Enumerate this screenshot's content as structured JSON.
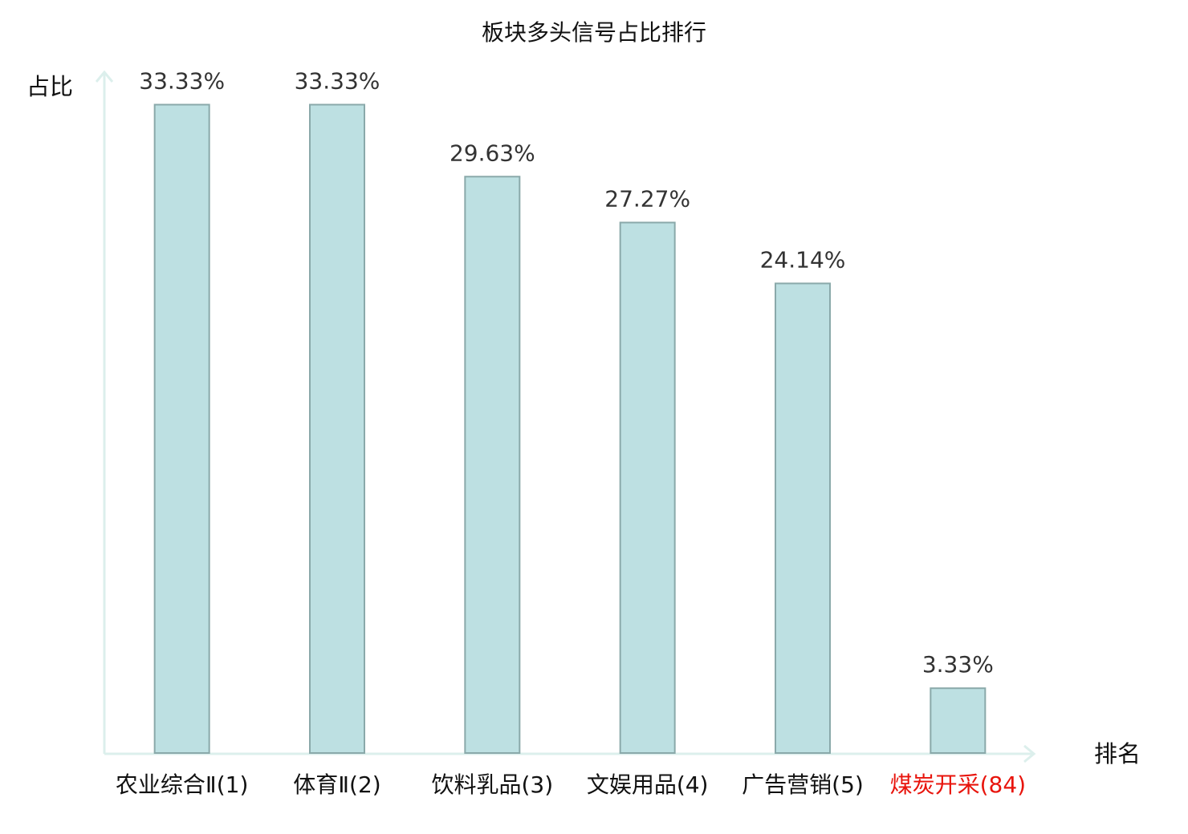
{
  "chart_data": {
    "type": "bar",
    "title": "板块多头信号占比排行",
    "y_label": "占比",
    "x_label": "排名",
    "categories": [
      "农业综合Ⅱ(1)",
      "体育Ⅱ(2)",
      "饮料乳品(3)",
      "文娱用品(4)",
      "广告营销(5)",
      "煤炭开采(84)"
    ],
    "category_colors": [
      "#111111",
      "#111111",
      "#111111",
      "#111111",
      "#111111",
      "#e8140c"
    ],
    "values": [
      33.33,
      33.33,
      29.63,
      27.27,
      24.14,
      3.33
    ],
    "value_labels": [
      "33.33%",
      "33.33%",
      "29.63%",
      "27.27%",
      "24.14%",
      "3.33%"
    ],
    "color": "#bde0e2",
    "ylim": [
      0,
      35
    ]
  }
}
